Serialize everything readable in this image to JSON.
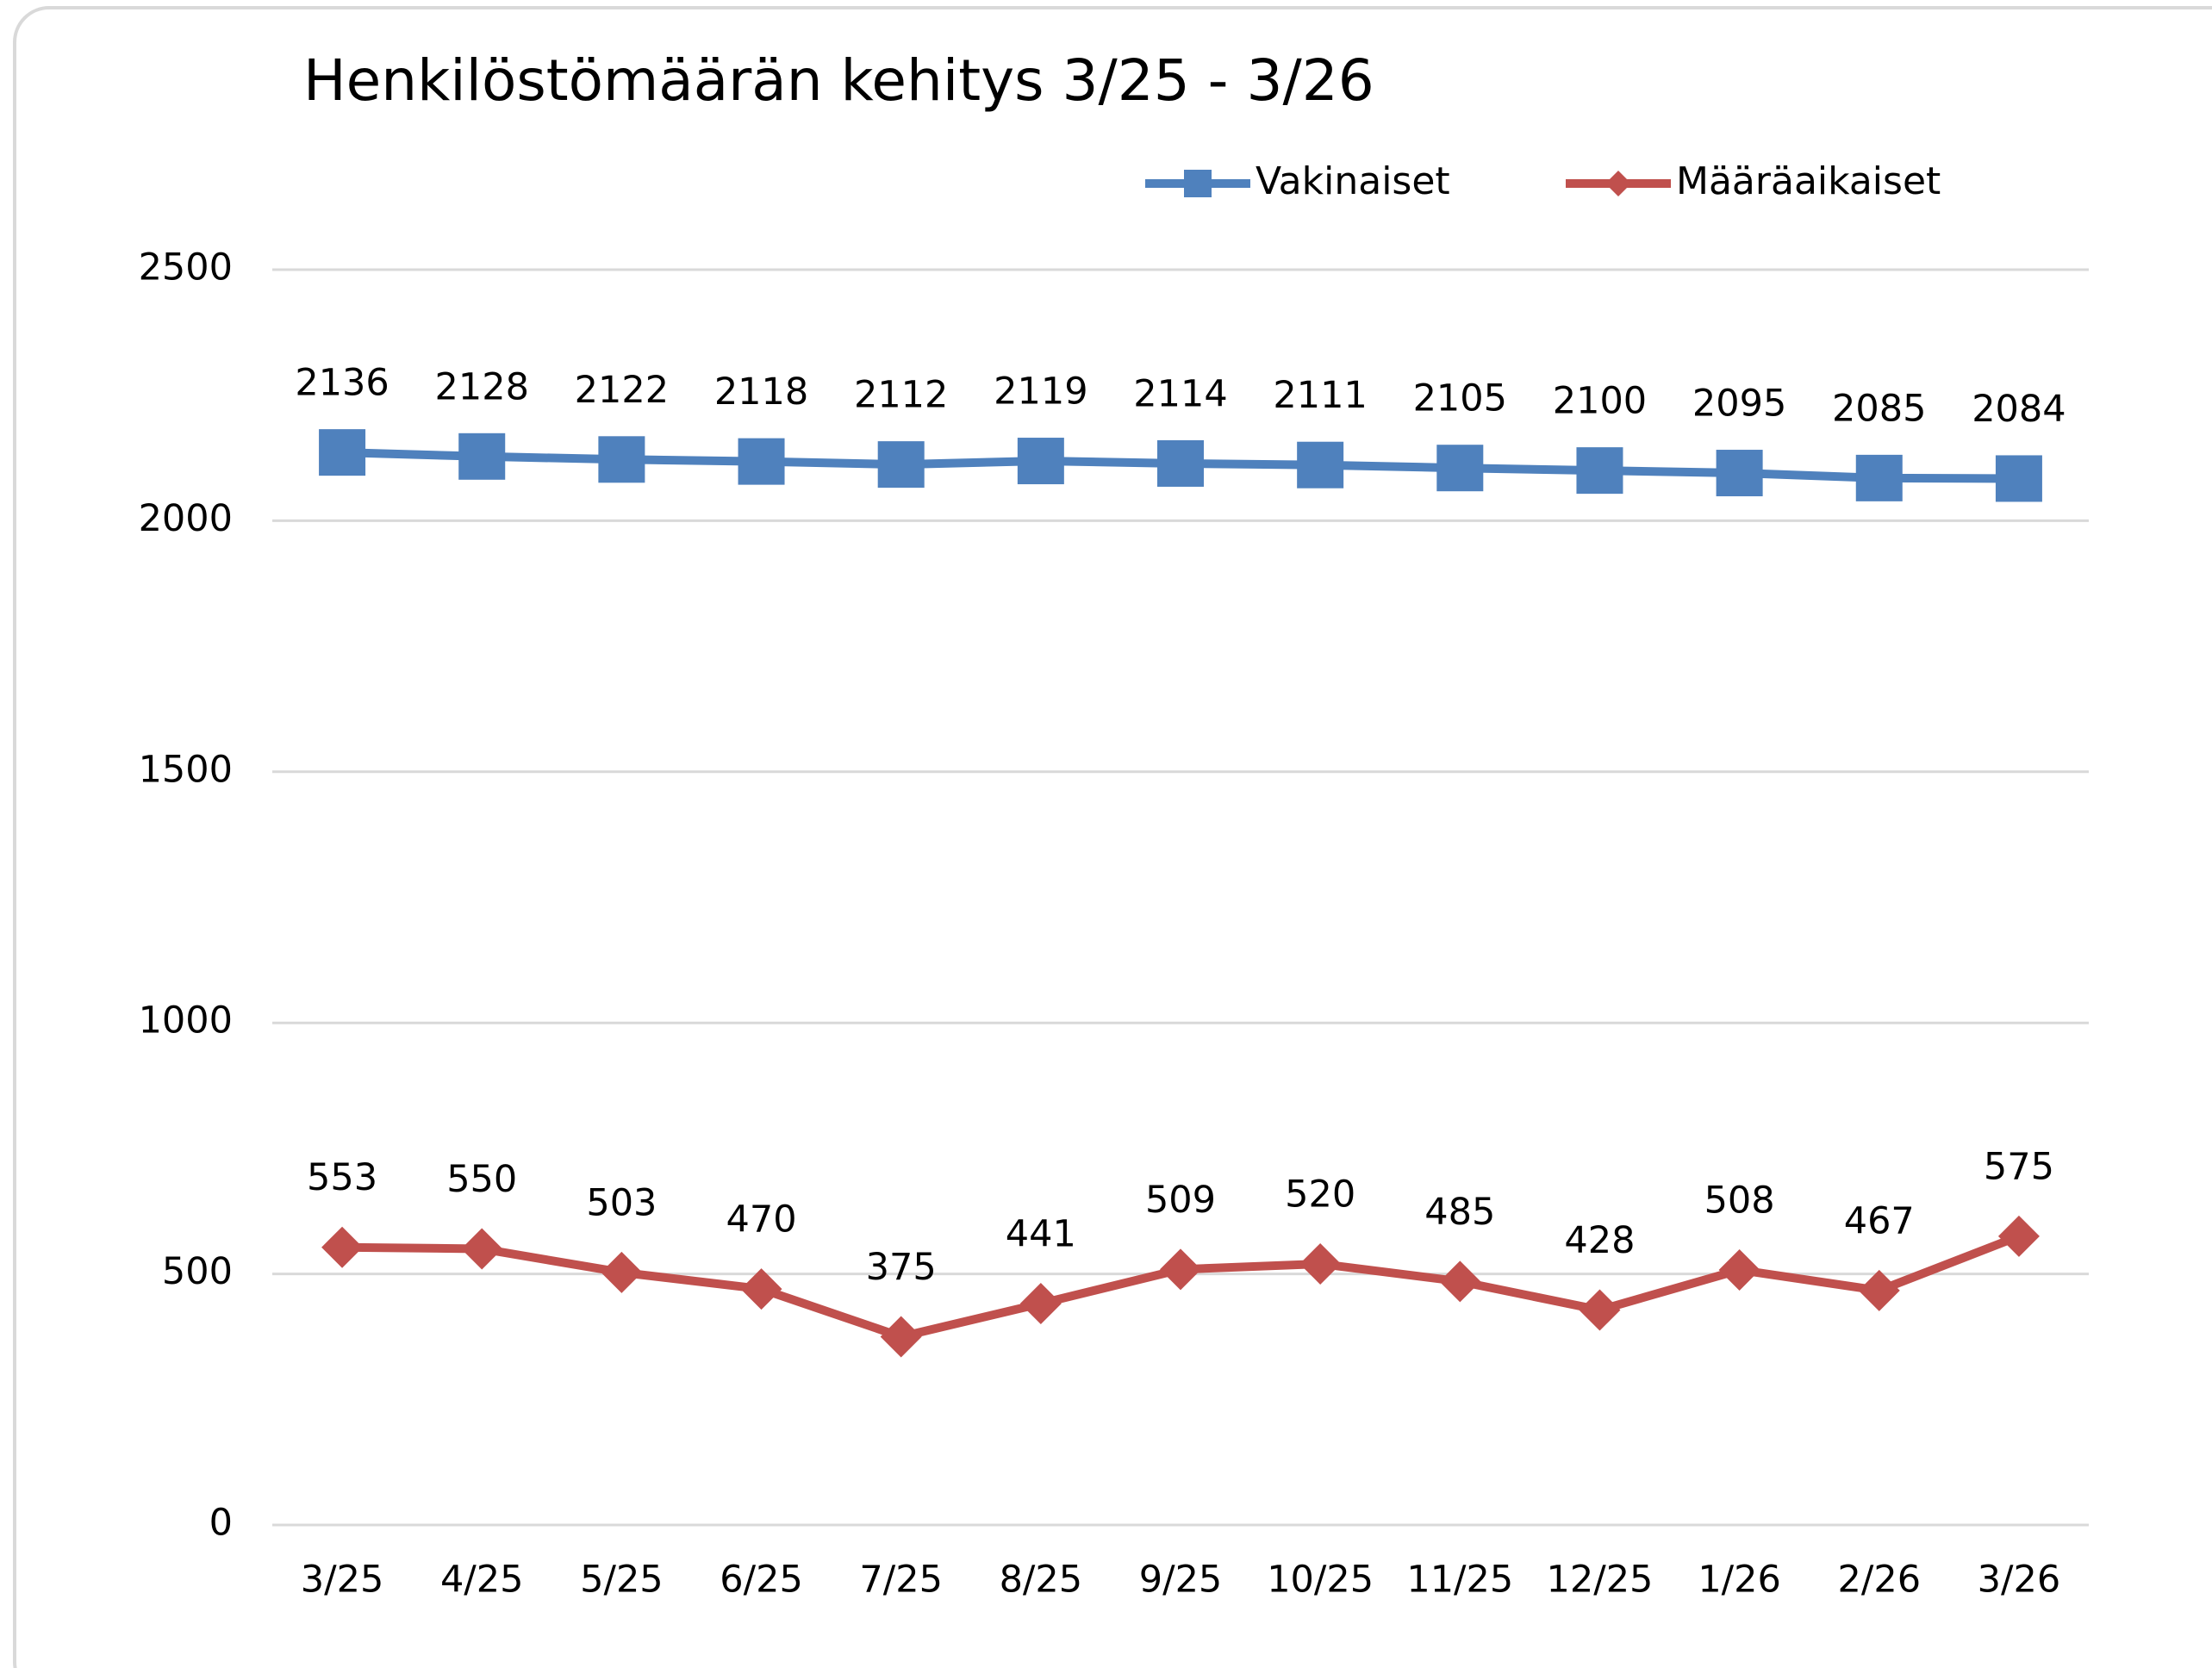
{
  "chart_data": {
    "type": "line",
    "title": "Henkilöstömäärän kehitys 3/25 - 3/26",
    "categories": [
      "3/25",
      "4/25",
      "5/25",
      "6/25",
      "7/25",
      "8/25",
      "9/25",
      "10/25",
      "11/25",
      "12/25",
      "1/26",
      "2/26",
      "3/26"
    ],
    "series": [
      {
        "name": "Vakinaiset",
        "color": "#4f81bd",
        "marker": "square",
        "values": [
          2136,
          2128,
          2122,
          2118,
          2112,
          2119,
          2114,
          2111,
          2105,
          2100,
          2095,
          2085,
          2084
        ]
      },
      {
        "name": "Määräaikaiset",
        "color": "#c0504d",
        "marker": "diamond",
        "values": [
          553,
          550,
          503,
          470,
          375,
          441,
          509,
          520,
          485,
          428,
          508,
          467,
          575
        ]
      }
    ],
    "ylim": [
      0,
      2500
    ],
    "yticks": [
      0,
      500,
      1000,
      1500,
      2000,
      2500
    ],
    "grid": true,
    "legend": "top"
  }
}
